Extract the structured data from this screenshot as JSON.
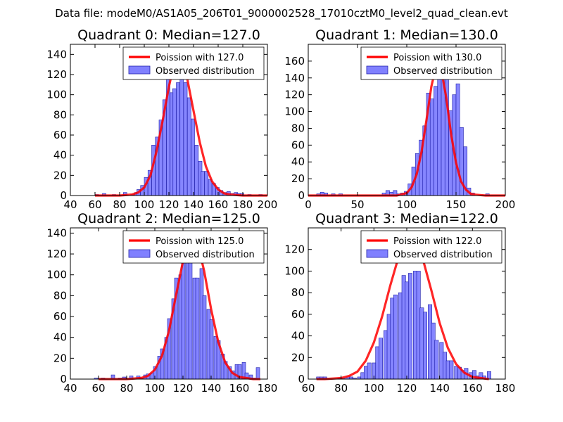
{
  "figure_title": "Data file: modeM0/AS1A05_206T01_9000002528_17010cztM0_level2_quad_clean.evt",
  "colors": {
    "bar_fill": "#8080ff",
    "bar_edge": "#2020aa",
    "curve": "#ff0000"
  },
  "chart_data": [
    {
      "type": "bar",
      "title": "Quadrant 0: Median=127.0",
      "median": 127.0,
      "xlim": [
        40,
        200
      ],
      "ylim": [
        0,
        150
      ],
      "xticks": [
        "40",
        "60",
        "80",
        "100",
        "120",
        "140",
        "160",
        "180",
        "200"
      ],
      "yticks": [
        "0",
        "20",
        "40",
        "60",
        "80",
        "100",
        "120",
        "140"
      ],
      "legend": [
        "Poission with 127.0",
        "Observed distribution"
      ],
      "legend_location": "upper-right",
      "bin_width": 2.87,
      "bin_starts": [
        60,
        63,
        66,
        69,
        71,
        74,
        77,
        80,
        83,
        86,
        89,
        92,
        94,
        97,
        100,
        103,
        106,
        109,
        112,
        115,
        118,
        121,
        123,
        126,
        129,
        132,
        135,
        138,
        141,
        144,
        146,
        149,
        152,
        155,
        158,
        161,
        164,
        167,
        170,
        173,
        175,
        178,
        181,
        184,
        187,
        190,
        193
      ],
      "values": [
        1,
        0,
        2,
        0,
        0,
        1,
        0,
        0,
        3,
        0,
        1,
        3,
        6,
        10,
        18,
        25,
        50,
        58,
        75,
        95,
        116,
        102,
        106,
        112,
        132,
        112,
        97,
        76,
        50,
        34,
        24,
        24,
        16,
        12,
        8,
        5,
        3,
        4,
        2,
        3,
        2,
        2,
        0,
        1,
        0,
        0,
        1
      ],
      "curve_x": [
        60,
        70,
        80,
        90,
        95,
        100,
        105,
        110,
        115,
        120,
        125,
        127,
        130,
        135,
        140,
        145,
        150,
        155,
        160,
        165,
        170,
        180,
        190,
        200
      ],
      "curve_y": [
        0,
        0,
        0,
        1,
        3,
        8,
        20,
        44,
        75,
        108,
        135,
        140,
        136,
        115,
        84,
        53,
        29,
        14,
        6,
        2,
        1,
        0,
        0,
        0
      ]
    },
    {
      "type": "bar",
      "title": "Quadrant 1: Median=130.0",
      "median": 130.0,
      "xlim": [
        0,
        200
      ],
      "ylim": [
        0,
        180
      ],
      "xticks": [
        "0",
        "50",
        "100",
        "150",
        "200"
      ],
      "yticks": [
        "0",
        "20",
        "40",
        "60",
        "80",
        "100",
        "120",
        "140",
        "160"
      ],
      "legend": [
        "Poission with 130.0",
        "Observed distribution"
      ],
      "legend_location": "upper-right",
      "bin_width": 3.75,
      "bin_starts": [
        8.5,
        12.25,
        16,
        19.75,
        23.5,
        27.25,
        31,
        75,
        78.75,
        82.5,
        86.25,
        90,
        93.75,
        97.5,
        101.25,
        105,
        108.75,
        112.5,
        116.25,
        120,
        123.75,
        127.5,
        131.25,
        135,
        138.75,
        142.5,
        146.25,
        150,
        153.75,
        157.5,
        161.25,
        165,
        168.75,
        172.5,
        176.25,
        180
      ],
      "values": [
        2,
        4,
        3,
        0,
        2,
        0,
        2,
        3,
        6,
        4,
        6,
        2,
        3,
        5,
        14,
        34,
        50,
        66,
        83,
        122,
        115,
        130,
        147,
        172,
        154,
        101,
        120,
        133,
        81,
        58,
        9,
        3,
        0,
        0,
        0,
        2
      ],
      "curve_x": [
        0,
        50,
        80,
        90,
        100,
        105,
        110,
        115,
        120,
        125,
        130,
        135,
        140,
        145,
        150,
        155,
        160,
        165,
        170,
        180,
        200
      ],
      "curve_y": [
        0,
        0,
        0,
        0,
        3,
        10,
        25,
        52,
        90,
        130,
        155,
        150,
        117,
        73,
        39,
        17,
        7,
        2,
        1,
        0,
        0
      ]
    },
    {
      "type": "bar",
      "title": "Quadrant 2: Median=125.0",
      "median": 125.0,
      "xlim": [
        40,
        180
      ],
      "ylim": [
        0,
        145
      ],
      "xticks": [
        "40",
        "60",
        "80",
        "100",
        "120",
        "140",
        "160",
        "180"
      ],
      "yticks": [
        "0",
        "20",
        "40",
        "60",
        "80",
        "100",
        "120",
        "140"
      ],
      "legend": [
        "Poission with 125.0",
        "Observed distribution"
      ],
      "legend_location": "upper-right",
      "bin_width": 2.5,
      "bin_starts": [
        57,
        60,
        62,
        64,
        67,
        69,
        72,
        74,
        77,
        79,
        82,
        84,
        87,
        89,
        92,
        94,
        97,
        99,
        102,
        104,
        107,
        109,
        112,
        114,
        117,
        119,
        122,
        124,
        127,
        129,
        132,
        134,
        137,
        139,
        142,
        144,
        147,
        149,
        152,
        154,
        157,
        159,
        162,
        164,
        167,
        169,
        172
      ],
      "values": [
        1,
        0,
        1,
        0,
        0,
        4,
        0,
        1,
        2,
        0,
        3,
        0,
        3,
        1,
        4,
        5,
        6,
        12,
        22,
        29,
        40,
        58,
        77,
        97,
        100,
        112,
        131,
        117,
        97,
        97,
        106,
        80,
        67,
        57,
        41,
        37,
        24,
        17,
        12,
        8,
        14,
        14,
        16,
        6,
        4,
        1,
        11
      ],
      "curve_x": [
        60,
        70,
        80,
        90,
        95,
        100,
        105,
        110,
        115,
        120,
        125,
        130,
        135,
        140,
        145,
        150,
        155,
        160,
        165,
        170,
        175
      ],
      "curve_y": [
        0,
        0,
        0,
        1,
        3,
        9,
        22,
        46,
        80,
        113,
        136,
        132,
        104,
        67,
        36,
        16,
        6,
        2,
        1,
        0,
        0
      ]
    },
    {
      "type": "bar",
      "title": "Quadrant 3: Median=122.0",
      "median": 122.0,
      "xlim": [
        60,
        180
      ],
      "ylim": [
        0,
        140
      ],
      "xticks": [
        "60",
        "80",
        "100",
        "120",
        "140",
        "160",
        "180"
      ],
      "yticks": [
        "0",
        "20",
        "40",
        "60",
        "80",
        "100",
        "120"
      ],
      "legend": [
        "Poission with 122.0",
        "Observed distribution"
      ],
      "legend_location": "upper-right",
      "bin_width": 2.3,
      "bin_starts": [
        65,
        67,
        69,
        71,
        74,
        76,
        78,
        80,
        83,
        85,
        87,
        90,
        92,
        94,
        96,
        99,
        101,
        103,
        106,
        108,
        110,
        112,
        115,
        117,
        119,
        121,
        124,
        126,
        128,
        130,
        133,
        135,
        137,
        140,
        142,
        144,
        146,
        149,
        151,
        153,
        155,
        158,
        160,
        162,
        164,
        166,
        169
      ],
      "values": [
        2,
        2,
        2,
        0,
        0,
        0,
        1,
        1,
        2,
        2,
        1,
        2,
        6,
        12,
        15,
        15,
        30,
        38,
        45,
        60,
        75,
        78,
        80,
        96,
        90,
        98,
        100,
        100,
        66,
        62,
        69,
        52,
        36,
        34,
        25,
        17,
        17,
        12,
        11,
        8,
        10,
        6,
        8,
        3,
        6,
        3,
        7
      ],
      "curve_x": [
        65,
        70,
        80,
        85,
        90,
        95,
        100,
        105,
        110,
        115,
        120,
        122,
        125,
        130,
        135,
        140,
        145,
        150,
        155,
        160,
        165,
        170
      ],
      "curve_y": [
        0,
        0,
        1,
        3,
        7,
        17,
        34,
        58,
        87,
        113,
        130,
        131,
        128,
        110,
        82,
        52,
        29,
        14,
        6,
        2,
        1,
        0
      ]
    }
  ]
}
